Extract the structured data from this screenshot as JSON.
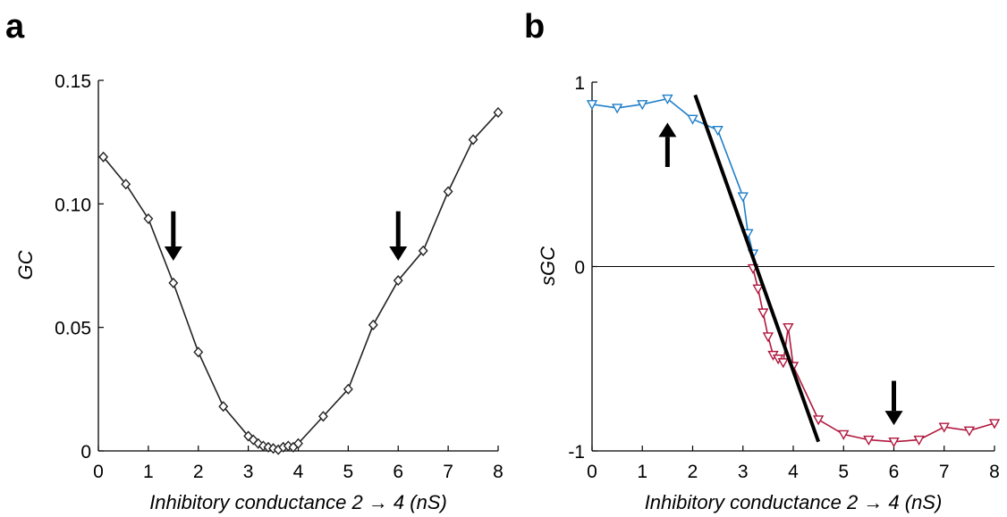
{
  "figure": {
    "panels": [
      {
        "letter": "a",
        "chart_key": 0
      },
      {
        "letter": "b",
        "chart_key": 1
      }
    ]
  },
  "chart_data": [
    {
      "type": "line",
      "panel": "a",
      "title": "",
      "xlabel": "Inhibitory conductance 2 → 4 (nS)",
      "ylabel": "GC",
      "xlim": [
        0,
        8
      ],
      "ylim": [
        0,
        0.15
      ],
      "xticks": [
        "0",
        "1",
        "2",
        "3",
        "4",
        "5",
        "6",
        "7",
        "8"
      ],
      "yticks": [
        "0",
        "0.05",
        "0.10",
        "0.15"
      ],
      "grid": false,
      "series": [
        {
          "color": "#222222",
          "marker": "diamond",
          "x": [
            0.1,
            0.55,
            1.0,
            1.5,
            2.0,
            2.5,
            3.0,
            3.1,
            3.2,
            3.3,
            3.4,
            3.5,
            3.6,
            3.7,
            3.8,
            3.9,
            4.0,
            4.5,
            5.0,
            5.5,
            6.0,
            6.5,
            7.0,
            7.5,
            8.0
          ],
          "y": [
            0.119,
            0.108,
            0.094,
            0.068,
            0.04,
            0.018,
            0.006,
            0.0045,
            0.003,
            0.002,
            0.0015,
            0.001,
            0.0005,
            0.0015,
            0.002,
            0.0015,
            0.003,
            0.014,
            0.025,
            0.051,
            0.069,
            0.081,
            0.105,
            0.126,
            0.137
          ]
        }
      ],
      "arrows": [
        {
          "x": 1.5,
          "direction": "down",
          "y_tip": 0.077,
          "y_tail": 0.097
        },
        {
          "x": 6.0,
          "direction": "down",
          "y_tip": 0.077,
          "y_tail": 0.097
        }
      ]
    },
    {
      "type": "line",
      "panel": "b",
      "title": "",
      "xlabel": "Inhibitory conductance 2 → 4 (nS)",
      "ylabel": "sGC",
      "xlim": [
        0,
        8
      ],
      "ylim": [
        -1,
        1
      ],
      "xticks": [
        "0",
        "1",
        "2",
        "3",
        "4",
        "5",
        "6",
        "7",
        "8"
      ],
      "yticks": [
        "-1",
        "0",
        "1"
      ],
      "grid": false,
      "zero_line": true,
      "series": [
        {
          "color": "#1f7fc8",
          "marker": "triangle-down",
          "x": [
            0.0,
            0.5,
            1.0,
            1.5,
            2.0,
            2.5,
            3.0,
            3.1,
            3.2
          ],
          "y": [
            0.88,
            0.86,
            0.88,
            0.91,
            0.8,
            0.74,
            0.38,
            0.18,
            0.07
          ]
        },
        {
          "color": "#b0173e",
          "marker": "triangle-down",
          "x": [
            3.2,
            3.3,
            3.4,
            3.5,
            3.6,
            3.7,
            3.8,
            3.9,
            4.0,
            4.5,
            5.0,
            5.5,
            6.0,
            6.5,
            7.0,
            7.5,
            8.0
          ],
          "y": [
            -0.01,
            -0.12,
            -0.25,
            -0.38,
            -0.48,
            -0.5,
            -0.52,
            -0.33,
            -0.54,
            -0.83,
            -0.91,
            -0.94,
            -0.95,
            -0.94,
            -0.87,
            -0.89,
            -0.85
          ]
        }
      ],
      "fit_line": {
        "color": "#000000",
        "x": [
          2.05,
          4.5
        ],
        "y": [
          0.93,
          -0.95
        ]
      },
      "arrows": [
        {
          "x": 1.5,
          "direction": "up",
          "y_tip": 0.78,
          "y_tail": 0.54
        },
        {
          "x": 6.0,
          "direction": "down",
          "y_tip": -0.86,
          "y_tail": -0.62
        }
      ]
    }
  ]
}
